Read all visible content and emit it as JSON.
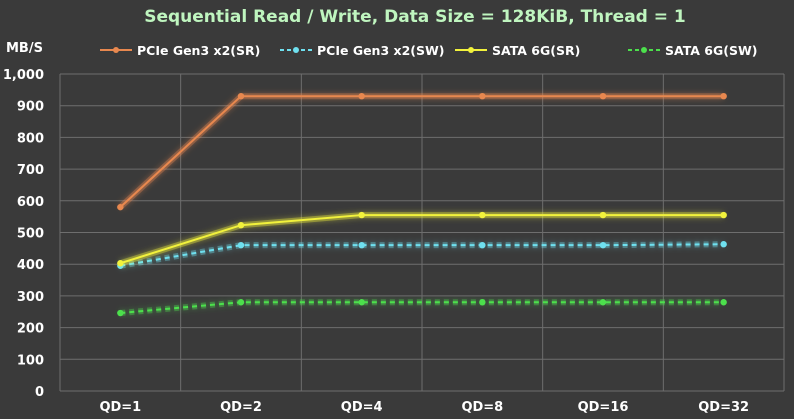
{
  "chart_data": {
    "type": "line",
    "title": "Sequential Read / Write, Data Size = 128KiB, Thread = 1",
    "ylabel": "MB/S",
    "xlabel": "",
    "categories": [
      "QD=1",
      "QD=2",
      "QD=4",
      "QD=8",
      "QD=16",
      "QD=32"
    ],
    "ylim": [
      0,
      1000
    ],
    "yticks": [
      "0",
      "100",
      "200",
      "300",
      "400",
      "500",
      "600",
      "700",
      "800",
      "900",
      "1,000"
    ],
    "grid": "on",
    "legend_position": "top",
    "series": [
      {
        "name": "PCIe Gen3 x2(SR)",
        "color": "#e8884f",
        "dashed": false,
        "values": [
          580,
          930,
          930,
          930,
          930,
          930
        ]
      },
      {
        "name": "PCIe Gen3 x2(SW)",
        "color": "#6fe0ef",
        "dashed": true,
        "values": [
          395,
          460,
          460,
          460,
          460,
          463
        ]
      },
      {
        "name": "SATA 6G(SR)",
        "color": "#f2f23c",
        "dashed": false,
        "values": [
          403,
          523,
          555,
          555,
          555,
          555
        ]
      },
      {
        "name": "SATA 6G(SW)",
        "color": "#4ce04c",
        "dashed": true,
        "values": [
          246,
          280,
          280,
          280,
          280,
          280
        ]
      }
    ]
  },
  "colors": {
    "background": "#3a3a3a",
    "title": "#bff5bf",
    "axis_text": "#ffffff",
    "grid": "#6e6e6e"
  }
}
